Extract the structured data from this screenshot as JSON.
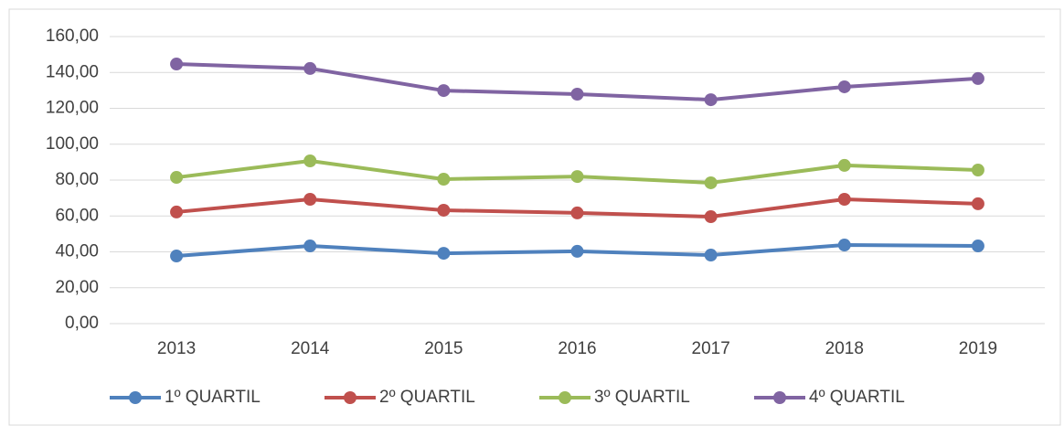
{
  "chart_data": {
    "type": "line",
    "categories": [
      "2013",
      "2014",
      "2015",
      "2016",
      "2017",
      "2018",
      "2019"
    ],
    "series": [
      {
        "name": "1º QUARTIL",
        "color": "#4f81bd",
        "values": [
          37.7,
          43.3,
          39.2,
          40.3,
          38.2,
          43.8,
          43.3
        ]
      },
      {
        "name": "2º QUARTIL",
        "color": "#c0504d",
        "values": [
          62.2,
          69.3,
          63.2,
          61.7,
          59.6,
          69.3,
          66.8
        ]
      },
      {
        "name": "3º QUARTIL",
        "color": "#9bbb59",
        "values": [
          81.5,
          90.7,
          80.5,
          82.0,
          78.5,
          88.2,
          85.6
        ]
      },
      {
        "name": "4º QUARTIL",
        "color": "#8064a2",
        "values": [
          144.7,
          142.2,
          129.9,
          127.9,
          124.8,
          132.0,
          136.6
        ]
      }
    ],
    "ylim": [
      0,
      160
    ],
    "yticks": [
      {
        "value": 0,
        "label": "0,00"
      },
      {
        "value": 20,
        "label": "20,00"
      },
      {
        "value": 40,
        "label": "40,00"
      },
      {
        "value": 60,
        "label": "60,00"
      },
      {
        "value": 80,
        "label": "80,00"
      },
      {
        "value": 100,
        "label": "100,00"
      },
      {
        "value": 120,
        "label": "120,00"
      },
      {
        "value": 140,
        "label": "140,00"
      },
      {
        "value": 160,
        "label": "160,00"
      }
    ],
    "grid": true,
    "legend": "bottom"
  }
}
